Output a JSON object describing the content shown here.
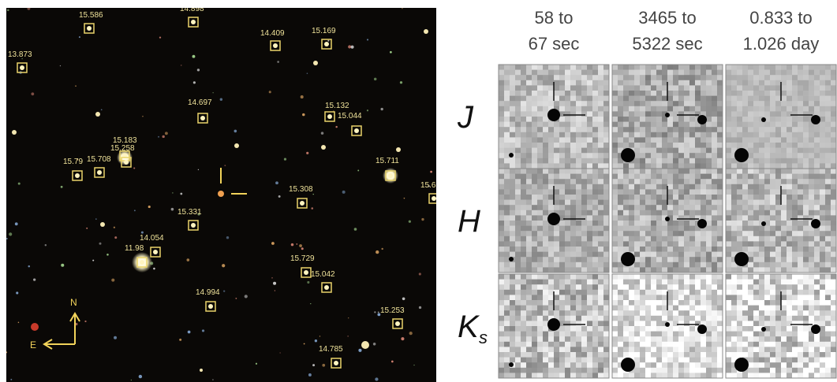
{
  "field": {
    "compass": {
      "north": "N",
      "east": "E"
    },
    "stars": [
      {
        "label": "15.586"
      },
      {
        "label": "14.898"
      },
      {
        "label": "14.409"
      },
      {
        "label": "15.169"
      },
      {
        "label": "13.873"
      },
      {
        "label": "14.697"
      },
      {
        "label": "15.132"
      },
      {
        "label": "15.044"
      },
      {
        "label": "15.183"
      },
      {
        "label": "15.258"
      },
      {
        "label": "15.79"
      },
      {
        "label": "15.708"
      },
      {
        "label": "15.711"
      },
      {
        "label": "15.6"
      },
      {
        "label": "15.308"
      },
      {
        "label": "15.331"
      },
      {
        "label": "14.054"
      },
      {
        "label": "11.98"
      },
      {
        "label": "15.729"
      },
      {
        "label": "15.042"
      },
      {
        "label": "14.994"
      },
      {
        "label": "15.253"
      },
      {
        "label": "14.785"
      }
    ]
  },
  "stamps": {
    "columns": [
      {
        "line1": "58 to",
        "line2": "67 sec"
      },
      {
        "line1": "3465 to",
        "line2": "5322 sec"
      },
      {
        "line1": "0.833 to",
        "line2": "1.026 day"
      }
    ],
    "rows": [
      {
        "band": "J"
      },
      {
        "band": "H"
      },
      {
        "band": "K",
        "subscript": "s"
      }
    ]
  }
}
